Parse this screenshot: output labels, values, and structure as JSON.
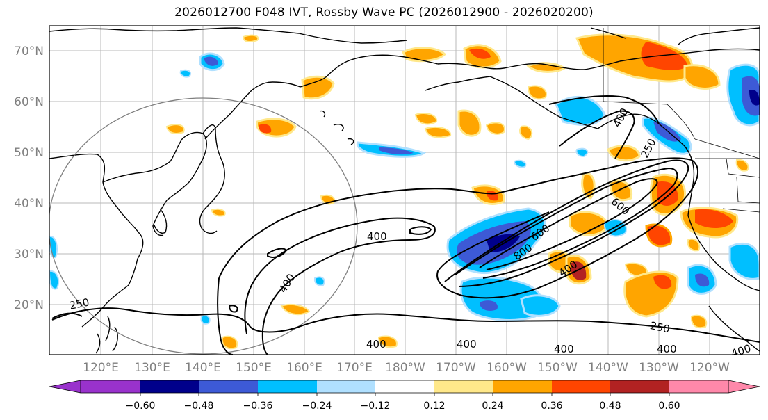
{
  "title": "2026012700 F048 IVT, Rossby Wave PC (2026012900 - 2026020200)",
  "map": {
    "lat_labels": [
      "70°N",
      "60°N",
      "50°N",
      "40°N",
      "30°N",
      "20°N"
    ],
    "lon_labels": [
      "120°E",
      "130°E",
      "140°E",
      "150°E",
      "160°E",
      "170°E",
      "180°W",
      "170°W",
      "160°W",
      "150°W",
      "140°W",
      "130°W",
      "120°W"
    ],
    "extent": {
      "lon_min": 110,
      "lon_max": 247,
      "lat_min": 10,
      "lat_max": 75
    },
    "ivt_contour_labels": [
      "400",
      "400",
      "400",
      "400",
      "400",
      "400",
      "600",
      "800",
      "400",
      "250",
      "250",
      "400",
      "250",
      "400",
      "600"
    ]
  },
  "colorbar": {
    "tick_labels": [
      "−0.60",
      "−0.48",
      "−0.36",
      "−0.24",
      "−0.12",
      "0.12",
      "0.24",
      "0.36",
      "0.48",
      "0.60"
    ],
    "bins": [
      {
        "color": "#9932cc"
      },
      {
        "color": "#00008b"
      },
      {
        "color": "#3d5ad6"
      },
      {
        "color": "#00bfff"
      },
      {
        "color": "#b0e0ff"
      },
      {
        "color": "#ffffff"
      },
      {
        "color": "#ffe88a"
      },
      {
        "color": "#ffa500"
      },
      {
        "color": "#ff4500"
      },
      {
        "color": "#b22222"
      },
      {
        "color": "#ff88aa"
      }
    ]
  }
}
